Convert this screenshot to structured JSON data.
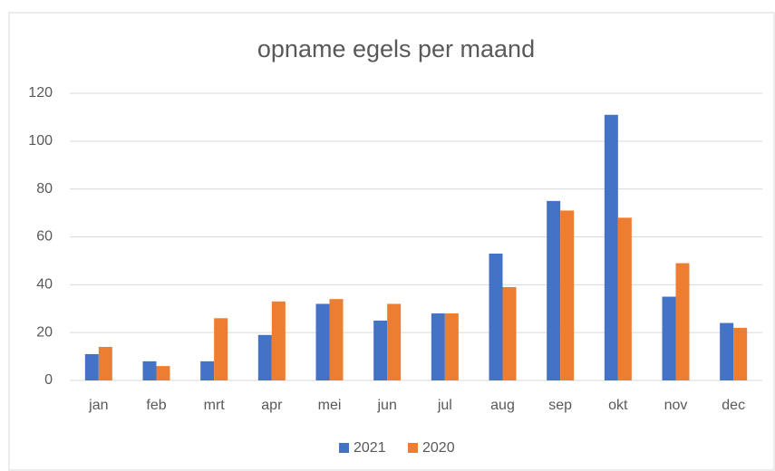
{
  "chart_data": {
    "type": "bar",
    "title": "opname egels per maand",
    "categories": [
      "jan",
      "feb",
      "mrt",
      "apr",
      "mei",
      "jun",
      "jul",
      "aug",
      "sep",
      "okt",
      "nov",
      "dec"
    ],
    "series": [
      {
        "name": "2021",
        "color": "#4472c4",
        "values": [
          11,
          8,
          8,
          19,
          32,
          25,
          28,
          53,
          75,
          111,
          35,
          24
        ]
      },
      {
        "name": "2020",
        "color": "#ed7d31",
        "values": [
          14,
          6,
          26,
          33,
          34,
          32,
          28,
          39,
          71,
          68,
          49,
          22
        ]
      }
    ],
    "ylim": [
      0,
      120
    ],
    "yticks": [
      0,
      20,
      40,
      60,
      80,
      100,
      120
    ],
    "grid": true,
    "legend": "bottom"
  }
}
